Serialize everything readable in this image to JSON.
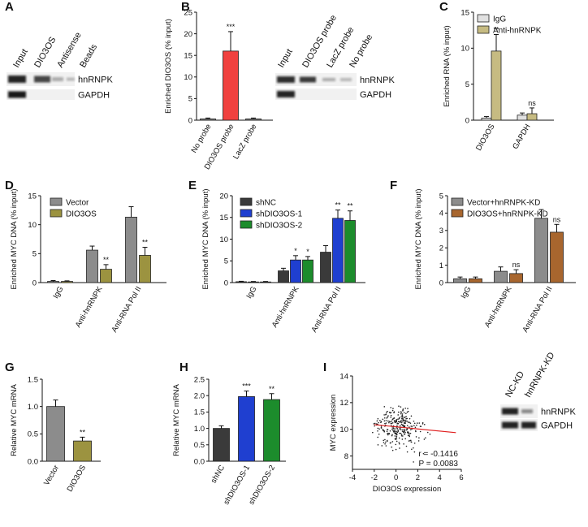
{
  "panel_labels": [
    "A",
    "B",
    "C",
    "D",
    "E",
    "F",
    "G",
    "H",
    "I"
  ],
  "colors": {
    "gray": "#8c8c8c",
    "olive": "#9c9340",
    "red": "#f0413f",
    "khaki": "#c6bb82",
    "light": "#e1e1e1",
    "dark": "#3a3a3a",
    "blue": "#1f3fd0",
    "green": "#1c8c2c",
    "brown": "#a8662e",
    "fit": "#e02020"
  },
  "blots": {
    "A": {
      "lanes": [
        "Input",
        "DIO3OS",
        "Antisense",
        "Beads"
      ],
      "rows": [
        "hnRNPK",
        "GAPDH"
      ]
    },
    "B": {
      "lanes": [
        "Input",
        "DIO3OS probe",
        "LacZ probe",
        "No probe"
      ],
      "rows": [
        "hnRNPK",
        "GAPDH"
      ]
    },
    "I": {
      "lanes": [
        "NC-KD",
        "hnRNPK-KD"
      ],
      "rows": [
        "hnRNPK",
        "GAPDH"
      ]
    }
  },
  "chart_data": [
    {
      "id": "B",
      "type": "bar",
      "ylabel": "Enriched DIO3OS (% input)",
      "ylim": [
        0,
        25
      ],
      "yticks": [
        0,
        5,
        10,
        15,
        20,
        25
      ],
      "categories": [
        "No probe",
        "DIO3OS probe",
        "LacZ probe"
      ],
      "values": [
        0.3,
        16,
        0.3
      ],
      "errors": [
        0.2,
        4.5,
        0.2
      ],
      "colors": [
        "gray",
        "red",
        "gray"
      ],
      "sig": [
        "",
        "***",
        ""
      ]
    },
    {
      "id": "C",
      "type": "bar",
      "ylabel": "Enriched RNA (% input)",
      "ylim": [
        0,
        15
      ],
      "yticks": [
        0,
        5,
        10,
        15
      ],
      "categories": [
        "DIO3OS",
        "GAPDH"
      ],
      "series": [
        {
          "name": "IgG",
          "values": [
            0.3,
            0.7
          ],
          "errors": [
            0.2,
            0.3
          ],
          "color": "light"
        },
        {
          "name": "Anti-hnRNPK",
          "values": [
            9.6,
            0.9
          ],
          "errors": [
            2.3,
            0.8
          ],
          "color": "khaki"
        }
      ],
      "sig": [
        [
          "",
          "**"
        ],
        [
          "",
          "ns"
        ]
      ]
    },
    {
      "id": "D",
      "type": "bar",
      "ylabel": "Enriched MYC DNA (% input)",
      "ylim": [
        0,
        15
      ],
      "yticks": [
        0,
        5,
        10,
        15
      ],
      "categories": [
        "IgG",
        "Anti-hnRNPK",
        "Anti-RNA Pol II"
      ],
      "series": [
        {
          "name": "Vector",
          "values": [
            0.2,
            5.6,
            11.3
          ],
          "errors": [
            0.15,
            0.7,
            1.8
          ],
          "color": "gray"
        },
        {
          "name": "DIO3OS",
          "values": [
            0.2,
            2.3,
            4.7
          ],
          "errors": [
            0.1,
            0.8,
            1.4
          ],
          "color": "olive"
        }
      ],
      "sig": [
        [
          "",
          ""
        ],
        [
          "",
          "**"
        ],
        [
          "",
          "**"
        ]
      ]
    },
    {
      "id": "E",
      "type": "bar",
      "ylabel": "Enriched MYC DNA (% input)",
      "ylim": [
        0,
        20
      ],
      "yticks": [
        0,
        5,
        10,
        15,
        20
      ],
      "categories": [
        "IgG",
        "Anti-hnRNPK",
        "Anti-RNA Pol II"
      ],
      "series": [
        {
          "name": "shNC",
          "values": [
            0.2,
            2.7,
            7.0
          ],
          "errors": [
            0.1,
            0.6,
            1.5
          ],
          "color": "dark"
        },
        {
          "name": "shDIO3OS-1",
          "values": [
            0.15,
            5.2,
            14.8
          ],
          "errors": [
            0.1,
            1.0,
            1.9
          ],
          "color": "blue"
        },
        {
          "name": "shDIO3OS-2",
          "values": [
            0.15,
            5.2,
            14.3
          ],
          "errors": [
            0.1,
            0.8,
            2.2
          ],
          "color": "green"
        }
      ],
      "sig": [
        [
          "",
          "",
          ""
        ],
        [
          "",
          "*",
          "*"
        ],
        [
          "",
          "**",
          "**"
        ]
      ]
    },
    {
      "id": "F",
      "type": "bar",
      "ylabel": "Enriched MYC DNA (% input)",
      "ylim": [
        0,
        5
      ],
      "yticks": [
        0,
        1,
        2,
        3,
        4,
        5
      ],
      "categories": [
        "IgG",
        "Anti-hnRNPK",
        "Anti-RNA Pol II"
      ],
      "series": [
        {
          "name": "Vector+hnRNPK-KD",
          "values": [
            0.22,
            0.65,
            3.7
          ],
          "errors": [
            0.1,
            0.25,
            0.5
          ],
          "color": "gray"
        },
        {
          "name": "DIO3OS+hnRNPK-KD",
          "values": [
            0.22,
            0.52,
            2.9
          ],
          "errors": [
            0.1,
            0.22,
            0.45
          ],
          "color": "brown"
        }
      ],
      "sig": [
        [
          "",
          ""
        ],
        [
          "",
          "ns"
        ],
        [
          "",
          "ns"
        ]
      ]
    },
    {
      "id": "G",
      "type": "bar",
      "ylabel": "Relative MYC mRNA",
      "ylim": [
        0,
        1.5
      ],
      "yticks": [
        "0.0",
        "0.5",
        "1.0",
        "1.5"
      ],
      "categories": [
        "Vector",
        "DIO3OS"
      ],
      "values": [
        1.0,
        0.37
      ],
      "errors": [
        0.12,
        0.07
      ],
      "colors": [
        "gray",
        "olive"
      ],
      "sig": [
        "",
        "**"
      ]
    },
    {
      "id": "H",
      "type": "bar",
      "ylabel": "Relative MYC mRNA",
      "ylim": [
        0,
        2.5
      ],
      "yticks": [
        "0.0",
        "0.5",
        "1.0",
        "1.5",
        "2.0",
        "2.5"
      ],
      "categories": [
        "shNC",
        "shDIO3OS-1",
        "shDIO3OS-2"
      ],
      "values": [
        1.0,
        1.97,
        1.88
      ],
      "errors": [
        0.08,
        0.17,
        0.18
      ],
      "colors": [
        "dark",
        "blue",
        "green"
      ],
      "sig": [
        "",
        "***",
        "**"
      ]
    },
    {
      "id": "I",
      "type": "scatter",
      "xlabel": "DIO3OS expression",
      "ylabel": "MYC expression",
      "xlim": [
        -4,
        6
      ],
      "ylim": [
        7,
        14
      ],
      "xticks": [
        -4,
        -2,
        0,
        2,
        4,
        6
      ],
      "yticks": [
        8,
        10,
        12,
        14
      ],
      "fit": {
        "x": [
          -2,
          5.5
        ],
        "y": [
          10.35,
          9.75
        ]
      },
      "r_label": "r = -0.1416",
      "p_label": "P = 0.0083",
      "n_points": 300
    }
  ]
}
